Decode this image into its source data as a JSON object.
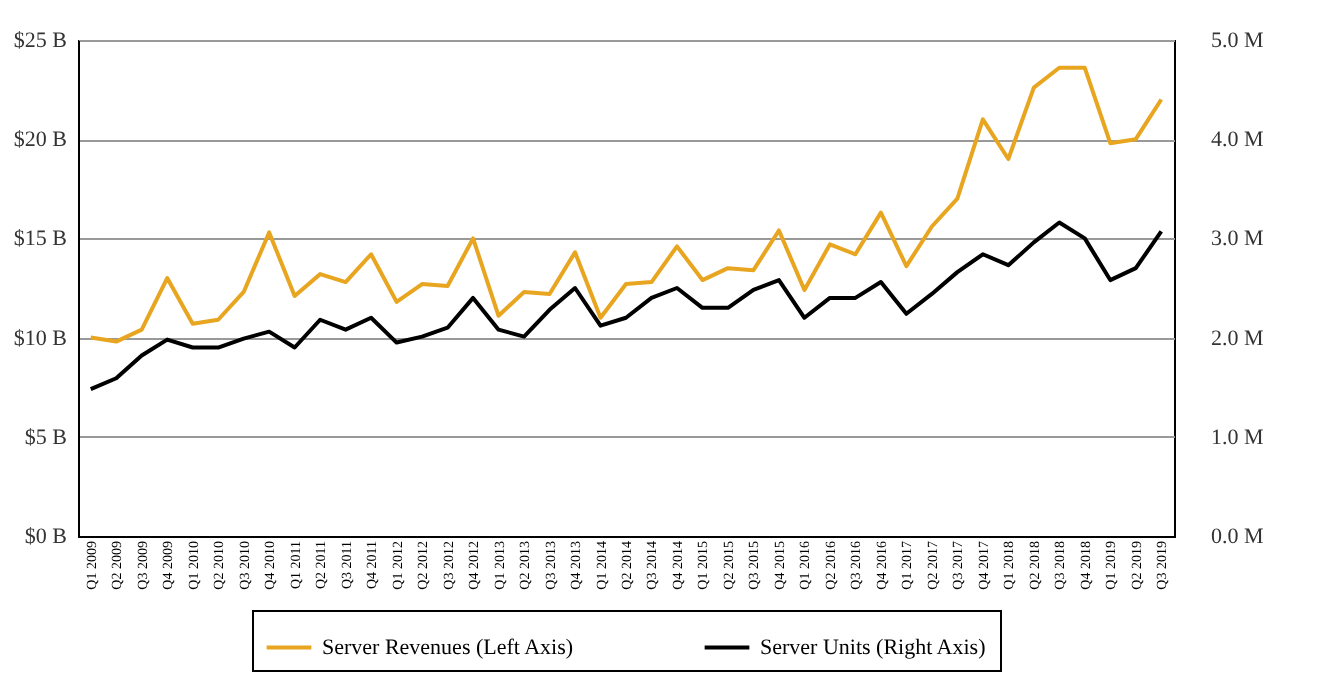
{
  "chart_data": {
    "type": "line",
    "categories": [
      "Q1 2009",
      "Q2 2009",
      "Q3 2009",
      "Q4 2009",
      "Q1 2010",
      "Q2 2010",
      "Q3 2010",
      "Q4 2010",
      "Q1 2011",
      "Q2 2011",
      "Q3 2011",
      "Q4 2011",
      "Q1 2012",
      "Q2 2012",
      "Q3 2012",
      "Q4 2012",
      "Q1 2013",
      "Q2 2013",
      "Q3 2013",
      "Q4 2013",
      "Q1 2014",
      "Q2 2014",
      "Q3 2014",
      "Q4 2014",
      "Q1 2015",
      "Q2 2015",
      "Q3 2015",
      "Q4 2015",
      "Q1 2016",
      "Q2 2016",
      "Q3 2016",
      "Q4 2016",
      "Q1 2017",
      "Q2 2017",
      "Q3 2017",
      "Q4 2017",
      "Q1 2018",
      "Q2 2018",
      "Q3 2018",
      "Q4 2018",
      "Q1 2019",
      "Q2 2019",
      "Q3 2019"
    ],
    "series": [
      {
        "name": "Server Revenues (Left Axis)",
        "color": "#e8a520",
        "values": [
          10.0,
          9.8,
          10.4,
          13.0,
          10.7,
          10.9,
          12.3,
          15.3,
          12.1,
          13.2,
          12.8,
          14.2,
          11.8,
          12.7,
          12.6,
          15.0,
          11.1,
          12.3,
          12.2,
          14.3,
          11.0,
          12.7,
          12.8,
          14.6,
          12.9,
          13.5,
          13.4,
          15.4,
          12.4,
          14.7,
          14.2,
          16.3,
          13.6,
          15.6,
          17.0,
          21.0,
          19.0,
          22.6,
          23.6,
          23.6,
          19.8,
          20.0,
          22.0
        ]
      },
      {
        "name": "Server Units (Right Axis)",
        "color": "#000000",
        "axis": "y2",
        "values": [
          1.48,
          1.59,
          1.82,
          1.98,
          1.9,
          1.9,
          1.99,
          2.06,
          1.9,
          2.18,
          2.08,
          2.2,
          1.95,
          2.01,
          2.1,
          2.4,
          2.08,
          2.01,
          2.28,
          2.5,
          2.12,
          2.2,
          2.4,
          2.5,
          2.3,
          2.3,
          2.48,
          2.58,
          2.2,
          2.4,
          2.4,
          2.56,
          2.24,
          2.44,
          2.66,
          2.84,
          2.73,
          2.96,
          3.16,
          3.0,
          2.58,
          2.7,
          3.07
        ]
      }
    ],
    "ylim": [
      0,
      25
    ],
    "yticks": [
      {
        "value": 0,
        "label": "$0 B"
      },
      {
        "value": 5,
        "label": "$5 B"
      },
      {
        "value": 10,
        "label": "$10 B"
      },
      {
        "value": 15,
        "label": "$15 B"
      },
      {
        "value": 20,
        "label": "$20 B"
      },
      {
        "value": 25,
        "label": "$25 B"
      }
    ],
    "y2lim": [
      0,
      5
    ],
    "y2ticks": [
      {
        "value": 0,
        "label": "0.0 M"
      },
      {
        "value": 1,
        "label": "1.0 M"
      },
      {
        "value": 2,
        "label": "2.0 M"
      },
      {
        "value": 3,
        "label": "3.0 M"
      },
      {
        "value": 4,
        "label": "4.0 M"
      },
      {
        "value": 5,
        "label": "5.0 M"
      }
    ],
    "grid": "y",
    "legend": "bottom"
  }
}
